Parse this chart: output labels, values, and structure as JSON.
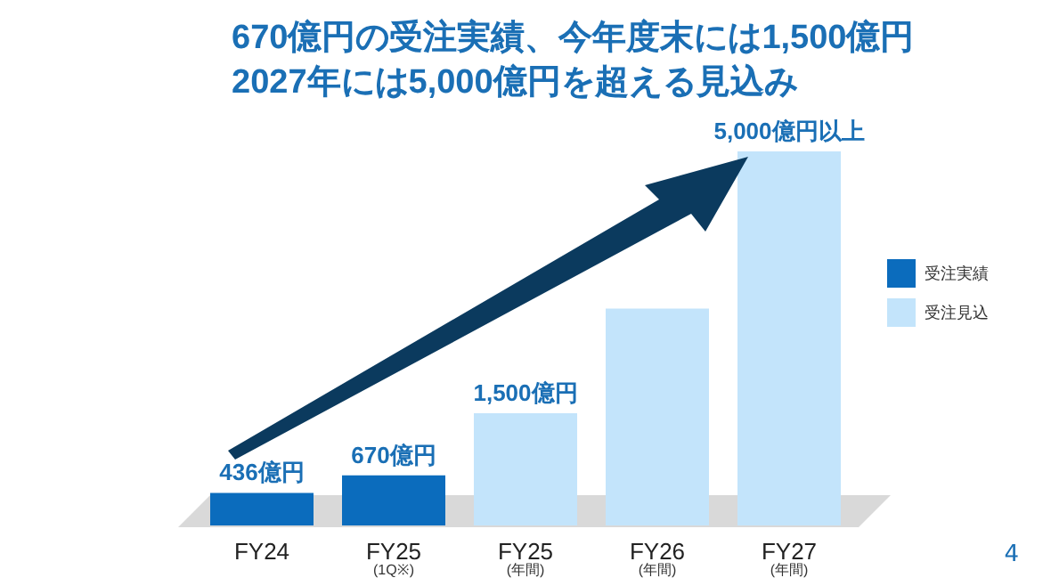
{
  "chart_data": {
    "type": "bar",
    "title": "670億円の受注実績、今年度末には1,500億円\n2027年には5,000億円を超える見込み",
    "tick_labels": "x",
    "categories": [
      "FY24",
      "FY25\n(1Q※)",
      "FY25\n(年間)",
      "FY26\n(年間)",
      "FY27\n(年間)"
    ],
    "series": [
      {
        "name": "受注実績",
        "color": "#0b6cbd",
        "values": [
          436,
          670,
          null,
          null,
          null
        ],
        "value_labels": [
          "436億円",
          "670億円",
          null,
          null,
          null
        ]
      },
      {
        "name": "受注見込",
        "color": "#c3e4fb",
        "values": [
          null,
          null,
          1500,
          2900,
          5000
        ],
        "value_labels": [
          null,
          null,
          "1,500億円",
          null,
          "5,000億円以上"
        ]
      }
    ],
    "legend": "right",
    "annotations": [
      "4"
    ]
  }
}
